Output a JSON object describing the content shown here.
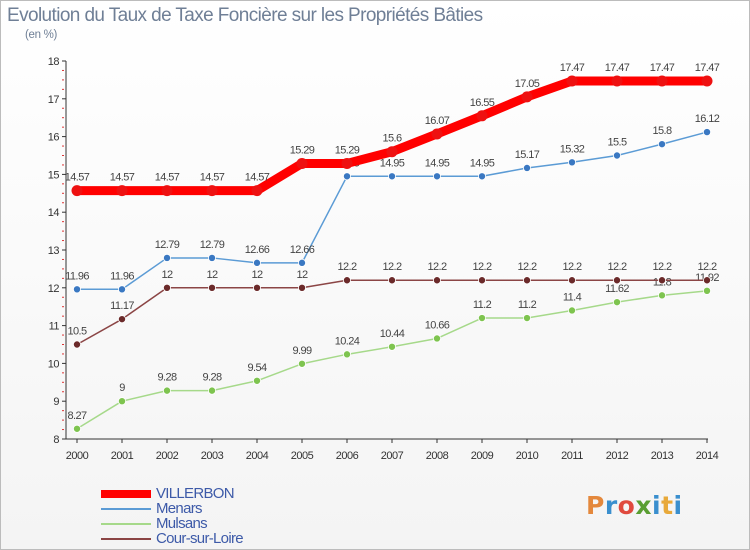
{
  "chart_data": {
    "type": "line",
    "title": "Evolution du Taux de Taxe Foncière sur les Propriétés Bâties",
    "subtitle": "(en %)",
    "x": [
      2000,
      2001,
      2002,
      2003,
      2004,
      2005,
      2006,
      2007,
      2008,
      2009,
      2010,
      2011,
      2012,
      2013,
      2014
    ],
    "ylim": [
      8,
      18
    ],
    "yticks": [
      8,
      9,
      10,
      11,
      12,
      13,
      14,
      15,
      16,
      17,
      18
    ],
    "grid": false,
    "legend_position": "bottom-left",
    "series": [
      {
        "name": "Menars",
        "color": "#5b9bd5",
        "marker": "#3a78c2",
        "values": [
          11.96,
          11.96,
          12.79,
          12.79,
          12.66,
          12.66,
          14.95,
          14.95,
          14.95,
          14.95,
          15.17,
          15.32,
          15.5,
          15.8,
          16.12
        ],
        "labels": [
          "11.96",
          "11.96",
          "12.79",
          "12.79",
          "12.66",
          "12.66",
          "14.95",
          "14.95",
          "14.95",
          "14.95",
          "15.17",
          "15.32",
          "15.5",
          "15.8",
          "16.12"
        ]
      },
      {
        "name": "Mulsans",
        "color": "#a6d98a",
        "marker": "#7ec44f",
        "values": [
          8.27,
          9,
          9.28,
          9.28,
          9.54,
          9.99,
          10.24,
          10.44,
          10.66,
          11.2,
          11.2,
          11.4,
          11.62,
          11.8,
          11.92
        ],
        "labels": [
          "8.27",
          "9",
          "9.28",
          "9.28",
          "9.54",
          "9.99",
          "10.24",
          "10.44",
          "10.66",
          "11.2",
          "11.2",
          "11.4",
          "11.62",
          "11.8",
          "11.92"
        ]
      },
      {
        "name": "Cour-sur-Loire",
        "color": "#8b4545",
        "marker": "#6b2a2a",
        "values": [
          10.5,
          11.17,
          12,
          12,
          12,
          12,
          12.2,
          12.2,
          12.2,
          12.2,
          12.2,
          12.2,
          12.2,
          12.2,
          12.2
        ],
        "labels": [
          "10.5",
          "11.17",
          "12",
          "12",
          "12",
          "12",
          "12.2",
          "12.2",
          "12.2",
          "12.2",
          "12.2",
          "12.2",
          "12.2",
          "12.2",
          "12.2"
        ]
      },
      {
        "name": "VILLERBON",
        "color": "#ff0000",
        "marker": "#ee1111",
        "values": [
          14.57,
          14.57,
          14.57,
          14.57,
          14.57,
          15.29,
          15.29,
          15.6,
          16.07,
          16.55,
          17.05,
          17.47,
          17.47,
          17.47,
          17.47
        ],
        "labels": [
          "14.57",
          "14.57",
          "14.57",
          "14.57",
          "14.57",
          "15.29",
          "15.29",
          "15.6",
          "16.07",
          "16.55",
          "17.05",
          "17.47",
          "17.47",
          "17.47",
          "17.47"
        ]
      }
    ]
  },
  "legend": {
    "items": [
      {
        "name": "VILLERBON",
        "color": "#ff0000"
      },
      {
        "name": "Menars",
        "color": "#5b9bd5"
      },
      {
        "name": "Mulsans",
        "color": "#a6d98a"
      },
      {
        "name": "Cour-sur-Loire",
        "color": "#8b4545"
      }
    ]
  },
  "logo": {
    "p": "P",
    "r": "r",
    "o": "o",
    "x": "x",
    "i": "i",
    "t": "t",
    "i2": "i"
  }
}
